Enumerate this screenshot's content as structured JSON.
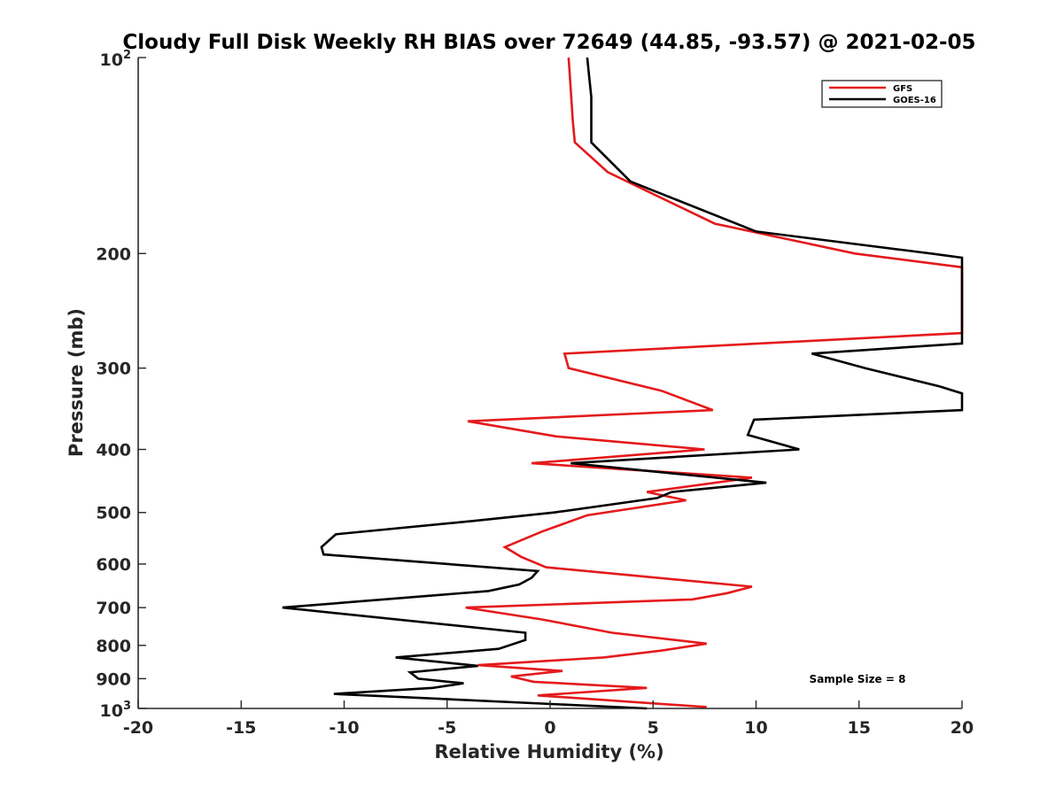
{
  "chart_data": {
    "type": "line",
    "title": "Cloudy Full Disk Weekly RH BIAS over 72649 (44.85, -93.57) @ 2021-02-05",
    "xlabel": "Relative Humidity (%)",
    "ylabel": "Pressure (mb)",
    "xlim": [
      -20,
      20
    ],
    "ylim": [
      100,
      1000
    ],
    "yscale": "log",
    "y_reversed": true,
    "x_ticks": [
      "-20",
      "-15",
      "-10",
      "-5",
      "0",
      "5",
      "10",
      "15",
      "20"
    ],
    "y_ticks": [
      {
        "value": 100,
        "base": "10",
        "exp": "2"
      },
      {
        "value": 200,
        "label": "200"
      },
      {
        "value": 300,
        "label": "300"
      },
      {
        "value": 400,
        "label": "400"
      },
      {
        "value": 500,
        "label": "500"
      },
      {
        "value": 600,
        "label": "600"
      },
      {
        "value": 700,
        "label": "700"
      },
      {
        "value": 800,
        "label": "800"
      },
      {
        "value": 900,
        "label": "900"
      },
      {
        "value": 1000,
        "base": "10",
        "exp": "3"
      }
    ],
    "legend_position": "top-right",
    "grid": false,
    "annotation": "Sample Size = 8",
    "series": [
      {
        "name": "GFS",
        "color": "#e41a1c",
        "points": [
          [
            0.9,
            100
          ],
          [
            1.1,
            125
          ],
          [
            1.2,
            135
          ],
          [
            2.8,
            150
          ],
          [
            8.0,
            180
          ],
          [
            14.8,
            200
          ],
          [
            20,
            210
          ],
          [
            20,
            265
          ],
          [
            0.7,
            285
          ],
          [
            0.9,
            300
          ],
          [
            5.4,
            325
          ],
          [
            7.9,
            348
          ],
          [
            -4.0,
            362
          ],
          [
            0.3,
            382
          ],
          [
            7.5,
            400
          ],
          [
            -0.9,
            420
          ],
          [
            9.8,
            442
          ],
          [
            4.7,
            465
          ],
          [
            6.6,
            479
          ],
          [
            1.8,
            505
          ],
          [
            -0.4,
            535
          ],
          [
            -2.2,
            565
          ],
          [
            -1.4,
            585
          ],
          [
            -0.2,
            607
          ],
          [
            9.8,
            650
          ],
          [
            8.6,
            665
          ],
          [
            6.9,
            680
          ],
          [
            -4.1,
            700
          ],
          [
            -0.4,
            730
          ],
          [
            3.0,
            765
          ],
          [
            7.6,
            795
          ],
          [
            5.4,
            815
          ],
          [
            2.6,
            835
          ],
          [
            -3.5,
            858
          ],
          [
            0.6,
            876
          ],
          [
            -1.9,
            893
          ],
          [
            -0.8,
            910
          ],
          [
            4.7,
            930
          ],
          [
            -0.6,
            955
          ],
          [
            7.6,
            995
          ]
        ]
      },
      {
        "name": "GOES-16",
        "color": "#000000",
        "points": [
          [
            1.8,
            100
          ],
          [
            2.0,
            115
          ],
          [
            2.0,
            135
          ],
          [
            3.9,
            155
          ],
          [
            10.0,
            185
          ],
          [
            18.5,
            200
          ],
          [
            20,
            203
          ],
          [
            20,
            275
          ],
          [
            12.7,
            285
          ],
          [
            15.3,
            300
          ],
          [
            18.9,
            320
          ],
          [
            20,
            328
          ],
          [
            20,
            348
          ],
          [
            9.9,
            360
          ],
          [
            9.6,
            380
          ],
          [
            12.1,
            400
          ],
          [
            1.0,
            420
          ],
          [
            10.5,
            450
          ],
          [
            5.9,
            465
          ],
          [
            5.2,
            475
          ],
          [
            0.2,
            500
          ],
          [
            -3.7,
            515
          ],
          [
            -10.4,
            540
          ],
          [
            -11.1,
            565
          ],
          [
            -11.0,
            580
          ],
          [
            -0.6,
            615
          ],
          [
            -0.9,
            630
          ],
          [
            -1.5,
            645
          ],
          [
            -3.0,
            660
          ],
          [
            -13.0,
            700
          ],
          [
            -1.2,
            765
          ],
          [
            -1.2,
            785
          ],
          [
            -2.5,
            810
          ],
          [
            -7.5,
            835
          ],
          [
            -3.5,
            860
          ],
          [
            -6.8,
            880
          ],
          [
            -6.4,
            900
          ],
          [
            -4.2,
            915
          ],
          [
            -5.7,
            930
          ],
          [
            -10.5,
            950
          ],
          [
            4.7,
            1000
          ]
        ]
      }
    ]
  }
}
